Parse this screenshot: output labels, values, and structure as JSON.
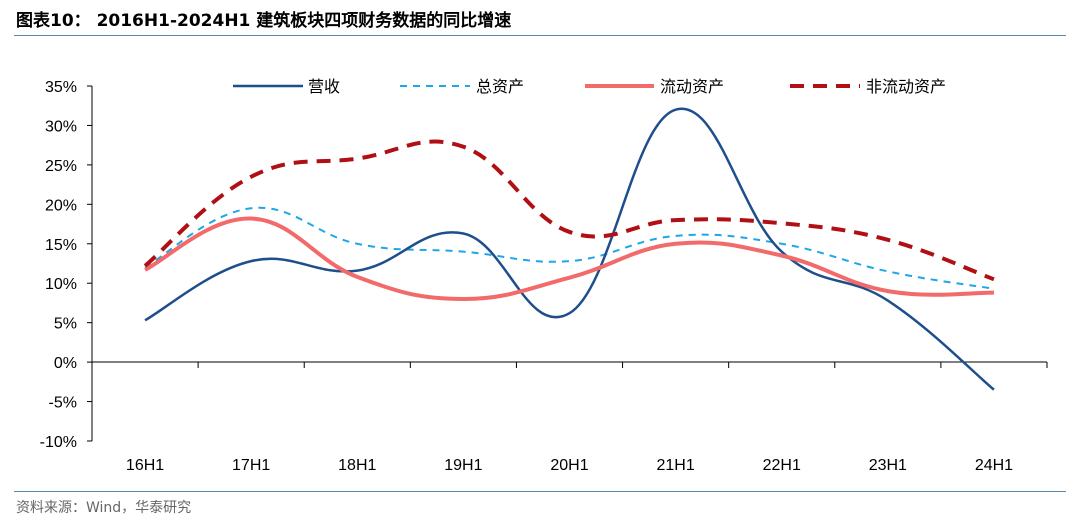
{
  "header": {
    "title": "图表10： 2016H1-2024H1 建筑板块四项财务数据的同比增速"
  },
  "footer": {
    "source": "资料来源：Wind，华泰研究"
  },
  "chart_data": {
    "type": "line",
    "categories": [
      "16H1",
      "17H1",
      "18H1",
      "19H1",
      "20H1",
      "21H1",
      "22H1",
      "23H1",
      "24H1"
    ],
    "ylim": [
      -10,
      35
    ],
    "yticks": [
      -10,
      -5,
      0,
      5,
      10,
      15,
      20,
      25,
      30,
      35
    ],
    "ytick_labels": [
      "-10%",
      "-5%",
      "0%",
      "5%",
      "10%",
      "15%",
      "20%",
      "25%",
      "30%",
      "35%"
    ],
    "legend_position": "top",
    "grid": false,
    "series": [
      {
        "name": "营收",
        "values": [
          5.3,
          12.8,
          11.6,
          16.3,
          6.2,
          32.0,
          14.0,
          7.8,
          -3.5
        ],
        "color": "#1f4e8c",
        "style": "solid",
        "width": 2.5
      },
      {
        "name": "总资产",
        "values": [
          12.0,
          19.5,
          15.0,
          14.0,
          12.8,
          16.0,
          15.0,
          11.5,
          9.3
        ],
        "color": "#1ea7e8",
        "style": "dash-short",
        "width": 2
      },
      {
        "name": "流动资产",
        "values": [
          11.7,
          18.2,
          10.8,
          8.0,
          10.7,
          15.0,
          13.5,
          9.0,
          8.8
        ],
        "color": "#f26a6a",
        "style": "solid",
        "width": 4
      },
      {
        "name": "非流动资产",
        "values": [
          12.2,
          23.5,
          25.8,
          27.3,
          16.5,
          18.0,
          17.6,
          15.5,
          10.5
        ],
        "color": "#b01014",
        "style": "dash-long",
        "width": 4
      }
    ]
  }
}
